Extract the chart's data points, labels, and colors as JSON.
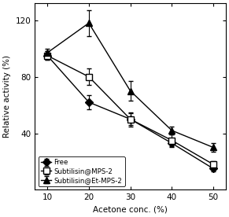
{
  "x": [
    10,
    20,
    30,
    40,
    50
  ],
  "free": [
    95,
    62,
    50,
    33,
    15
  ],
  "free_err": [
    3,
    5,
    4,
    3,
    2
  ],
  "mps2": [
    95,
    80,
    50,
    35,
    18
  ],
  "mps2_err": [
    3,
    6,
    5,
    4,
    2
  ],
  "etmps2": [
    97,
    118,
    70,
    42,
    30
  ],
  "etmps2_err": [
    3,
    9,
    7,
    3,
    3
  ],
  "xlabel": "Acetone conc. (%)",
  "ylabel": "Relative activity (%)",
  "xlim": [
    7,
    53
  ],
  "ylim": [
    0,
    132
  ],
  "xticks": [
    10,
    20,
    30,
    40,
    50
  ],
  "yticks": [
    40,
    80,
    120
  ],
  "legend_free": "Free",
  "legend_mps2": "Subtilisin@MPS-2",
  "legend_etmps2": "Subtilisin@Et-MPS-2",
  "line_color": "#000000",
  "bg_color": "#ffffff"
}
